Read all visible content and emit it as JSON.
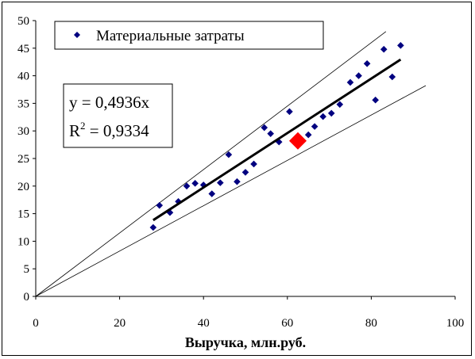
{
  "chart_data": {
    "type": "scatter",
    "title": "",
    "xlabel": "Выручка, млн.руб.",
    "ylabel": "",
    "xlim": [
      0,
      100
    ],
    "ylim": [
      0,
      50
    ],
    "x_ticks": [
      0,
      20,
      40,
      60,
      80,
      100
    ],
    "y_ticks": [
      0,
      5,
      10,
      15,
      20,
      25,
      30,
      35,
      40,
      45,
      50
    ],
    "grid": false,
    "legend": {
      "position": "top-left",
      "entries": [
        "Материальные затраты"
      ]
    },
    "series": [
      {
        "name": "Материальные затраты",
        "marker": "diamond",
        "color": "#000080",
        "points": [
          [
            28,
            12.5
          ],
          [
            29.5,
            16.5
          ],
          [
            32,
            15.2
          ],
          [
            34,
            17.2
          ],
          [
            36,
            20
          ],
          [
            38,
            20.5
          ],
          [
            40,
            20.2
          ],
          [
            42,
            18.6
          ],
          [
            44,
            20.6
          ],
          [
            46,
            25.7
          ],
          [
            48,
            20.8
          ],
          [
            50,
            22.5
          ],
          [
            52,
            24
          ],
          [
            54.5,
            30.6
          ],
          [
            56,
            29.5
          ],
          [
            58,
            28
          ],
          [
            60.5,
            33.5
          ],
          [
            62.5,
            28.5
          ],
          [
            65,
            29.3
          ],
          [
            66.5,
            30.8
          ],
          [
            68.5,
            32.6
          ],
          [
            70.5,
            33.2
          ],
          [
            72.5,
            34.8
          ],
          [
            75,
            38.8
          ],
          [
            77,
            40
          ],
          [
            79,
            42.2
          ],
          [
            81,
            35.6
          ],
          [
            83,
            44.8
          ],
          [
            85,
            39.8
          ],
          [
            87,
            45.5
          ]
        ]
      },
      {
        "marker": "diamond",
        "color": "#FF0000",
        "points": [
          [
            62.5,
            28.2
          ]
        ]
      }
    ],
    "trendline": {
      "slope": 0.4936,
      "x_range": [
        28,
        87
      ],
      "color": "#000000"
    },
    "bounds": [
      {
        "slope": 0.575,
        "x_range": [
          0,
          83.5
        ]
      },
      {
        "slope": 0.411,
        "x_range": [
          0,
          93
        ]
      }
    ],
    "annotations": {
      "equation": "y = 0,4936x",
      "r2_label": "R",
      "r2_exponent": "2",
      "r2_value": " = 0,9334"
    }
  }
}
